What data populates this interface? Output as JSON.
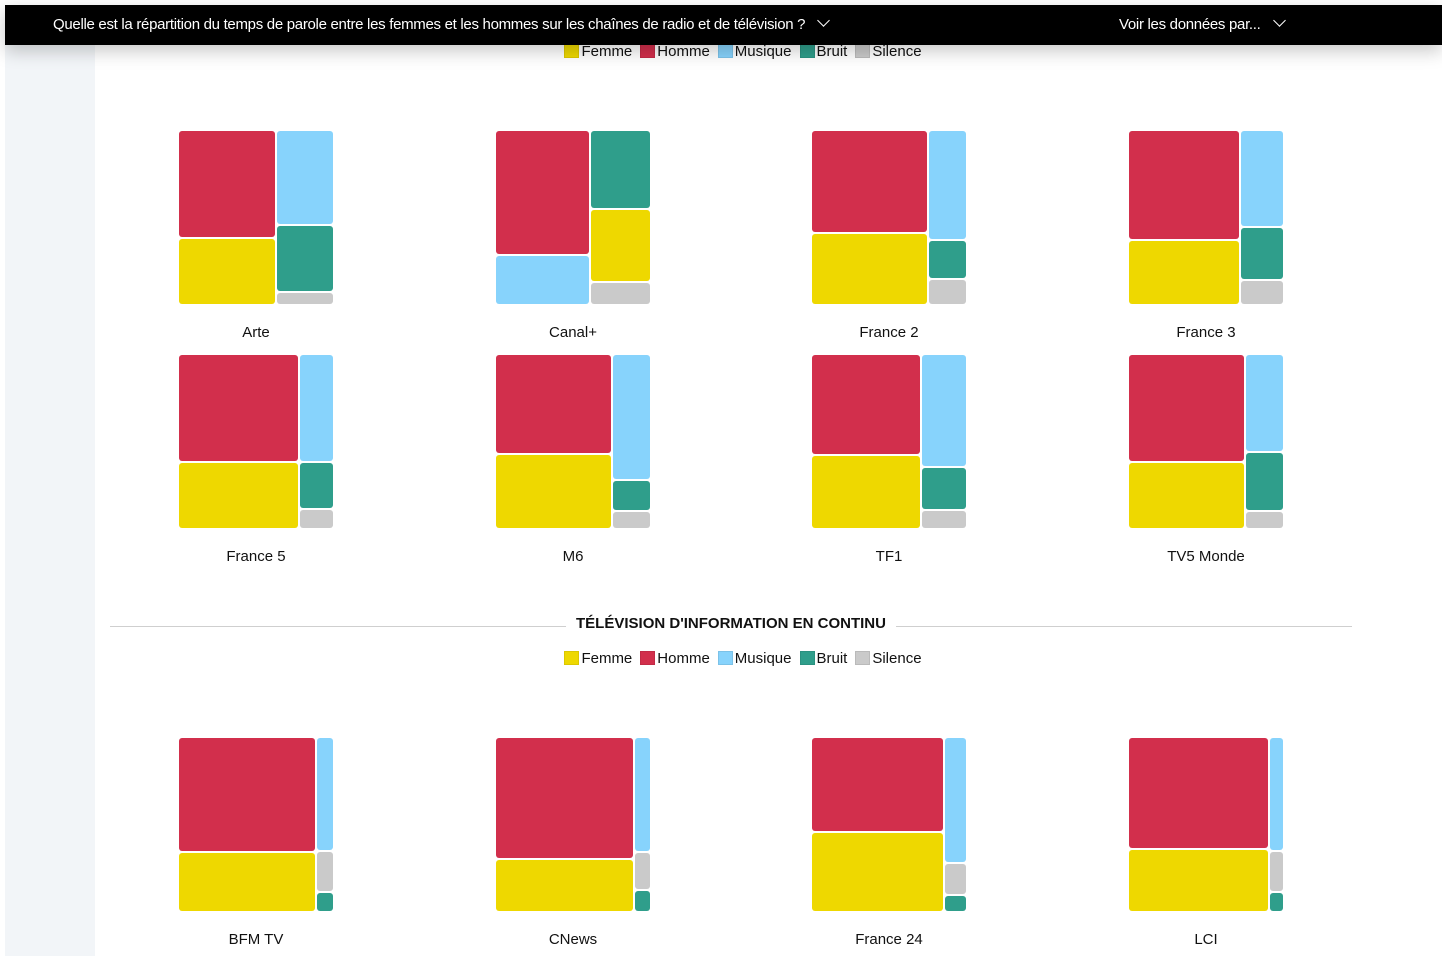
{
  "header": {
    "question": "Quelle est la répartition du temps de parole entre les femmes et les hommes sur les chaînes de radio et de télévision ?",
    "view_by": "Voir les données par..."
  },
  "legend": [
    {
      "label": "Femme",
      "color": "#eed800"
    },
    {
      "label": "Homme",
      "color": "#d22f4c"
    },
    {
      "label": "Musique",
      "color": "#87d3fc"
    },
    {
      "label": "Bruit",
      "color": "#2f9e8b"
    },
    {
      "label": "Silence",
      "color": "#cacaca"
    }
  ],
  "section_info": {
    "title": "TÉLÉVISION D'INFORMATION EN CONTINU"
  },
  "chart_data": [
    {
      "type": "treemap",
      "name": "Arte",
      "unit": "%",
      "left": [
        [
          "Homme",
          39
        ],
        [
          "Femme",
          24
        ]
      ],
      "right": [
        [
          "Musique",
          20
        ],
        [
          "Bruit",
          14.5
        ],
        [
          "Silence",
          2.5
        ]
      ]
    },
    {
      "type": "treemap",
      "name": "Canal+",
      "unit": "%",
      "left": [
        [
          "Homme",
          43.7
        ],
        [
          "Musique",
          17.3
        ]
      ],
      "right": [
        [
          "Bruit",
          17.6
        ],
        [
          "Femme",
          16.5
        ],
        [
          "Silence",
          4.9
        ]
      ]
    },
    {
      "type": "treemap",
      "name": "France 2",
      "unit": "%",
      "left": [
        [
          "Homme",
          44.2
        ],
        [
          "Femme",
          30.8
        ]
      ],
      "right": [
        [
          "Musique",
          15.6
        ],
        [
          "Bruit",
          5.6
        ],
        [
          "Silence",
          3.6
        ]
      ]
    },
    {
      "type": "treemap",
      "name": "France 3",
      "unit": "%",
      "left": [
        [
          "Homme",
          45.4
        ],
        [
          "Femme",
          26.6
        ]
      ],
      "right": [
        [
          "Musique",
          15.5
        ],
        [
          "Bruit",
          8.6
        ],
        [
          "Silence",
          3.9
        ]
      ]
    },
    {
      "type": "treemap",
      "name": "France 5",
      "unit": "%",
      "left": [
        [
          "Homme",
          48.2
        ],
        [
          "Femme",
          29.8
        ]
      ],
      "right": [
        [
          "Musique",
          13.6
        ],
        [
          "Bruit",
          6
        ],
        [
          "Silence",
          2.4
        ]
      ]
    },
    {
      "type": "treemap",
      "name": "M6",
      "unit": "%",
      "left": [
        [
          "Homme",
          42.9
        ],
        [
          "Femme",
          32.1
        ]
      ],
      "right": [
        [
          "Musique",
          18
        ],
        [
          "Bruit",
          4.5
        ],
        [
          "Silence",
          2.5
        ]
      ]
    },
    {
      "type": "treemap",
      "name": "TF1",
      "unit": "%",
      "left": [
        [
          "Homme",
          41
        ],
        [
          "Femme",
          30
        ]
      ],
      "right": [
        [
          "Musique",
          18.8
        ],
        [
          "Bruit",
          7.2
        ],
        [
          "Silence",
          3
        ]
      ]
    },
    {
      "type": "treemap",
      "name": "TV5 Monde",
      "unit": "%",
      "left": [
        [
          "Homme",
          46.4
        ],
        [
          "Femme",
          28.6
        ]
      ],
      "right": [
        [
          "Musique",
          14
        ],
        [
          "Bruit",
          8.5
        ],
        [
          "Silence",
          2.5
        ]
      ]
    },
    {
      "type": "treemap",
      "name": "BFM TV",
      "unit": "%",
      "left": [
        [
          "Homme",
          58.9
        ],
        [
          "Femme",
          30.1
        ]
      ],
      "right": [
        [
          "Musique",
          7.2
        ],
        [
          "Silence",
          2.6
        ],
        [
          "Bruit",
          1.2
        ]
      ]
    },
    {
      "type": "treemap",
      "name": "CNews",
      "unit": "%",
      "left": [
        [
          "Homme",
          62.6
        ],
        [
          "Femme",
          26.9
        ]
      ],
      "right": [
        [
          "Musique",
          6.9
        ],
        [
          "Silence",
          2.3
        ],
        [
          "Bruit",
          1.3
        ]
      ]
    },
    {
      "type": "treemap",
      "name": "France 24",
      "unit": "%",
      "left": [
        [
          "Homme",
          46.6
        ],
        [
          "Femme",
          39.1
        ]
      ],
      "right": [
        [
          "Musique",
          10.3
        ],
        [
          "Silence",
          2.7
        ],
        [
          "Bruit",
          1.3
        ]
      ]
    },
    {
      "type": "treemap",
      "name": "LCI",
      "unit": "%",
      "left": [
        [
          "Homme",
          58.4
        ],
        [
          "Femme",
          32.6
        ]
      ],
      "right": [
        [
          "Musique",
          5.9
        ],
        [
          "Silence",
          2.1
        ],
        [
          "Bruit",
          1.0
        ]
      ]
    }
  ]
}
